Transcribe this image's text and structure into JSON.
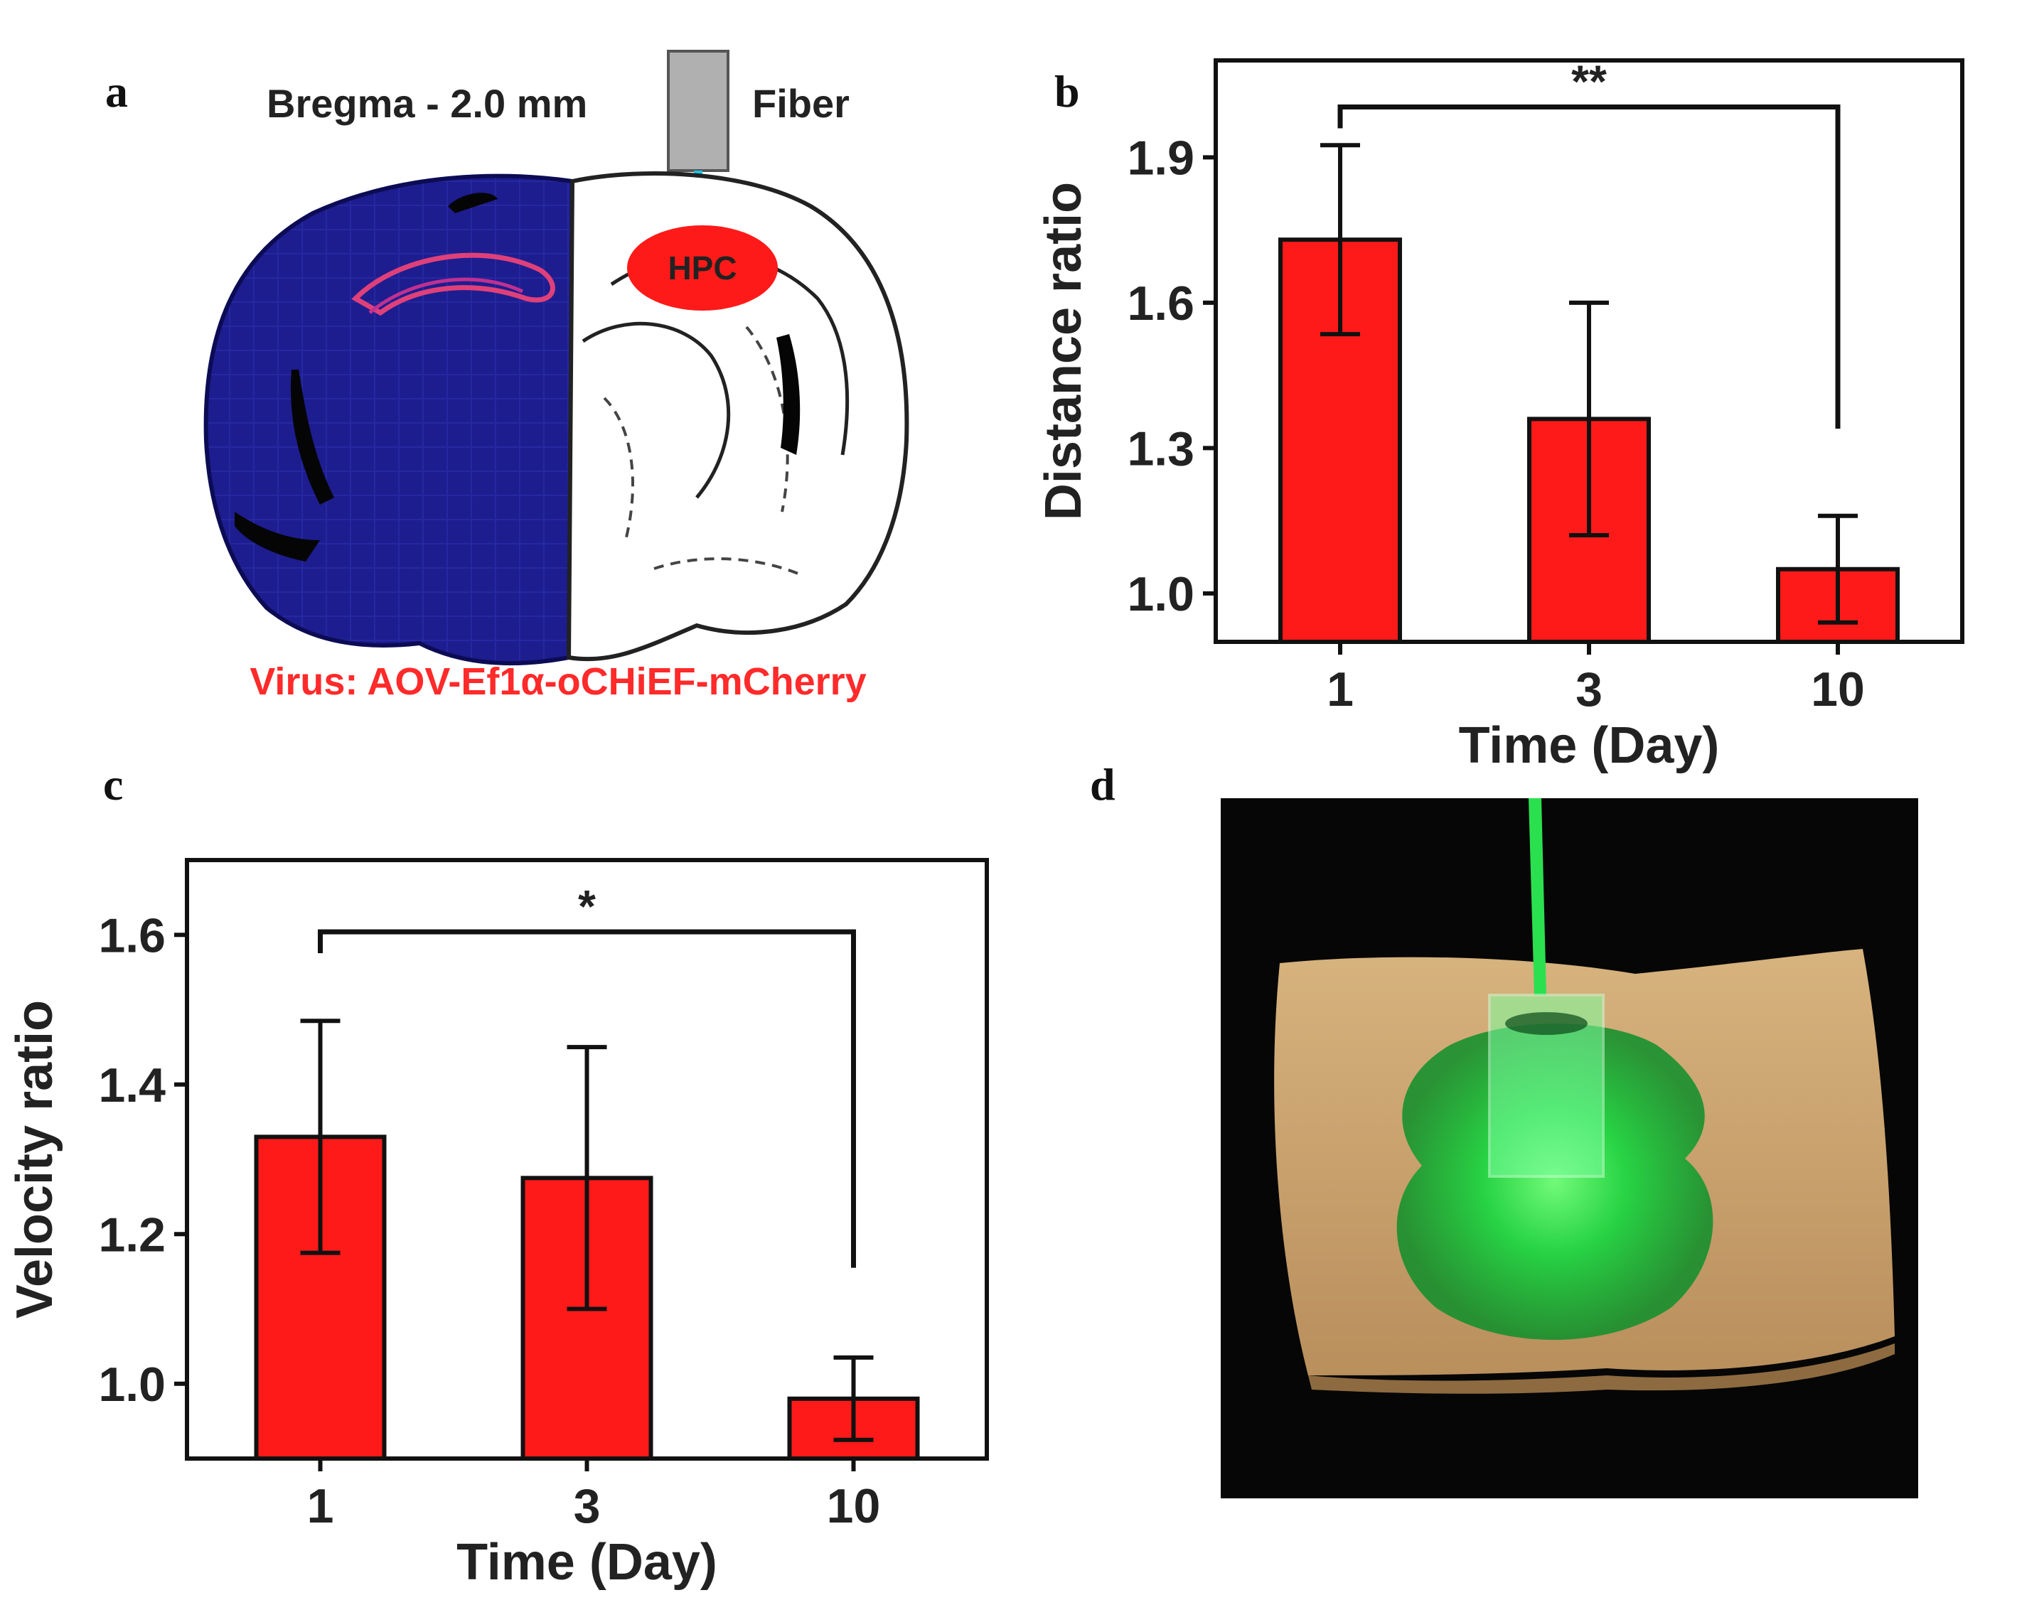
{
  "panels": {
    "a": {
      "letter": "a",
      "bregma_label": "Bregma - 2.0 mm",
      "fiber_label": "Fiber",
      "region_label": "HPC",
      "virus_label": "Virus: AOV-Ef1α-oCHiEF-mCherry",
      "colors": {
        "stain": "#1a1a8c",
        "virus": "#ff2a2a",
        "fiber_light": "#22c3e6",
        "fiber": "#b0b0b0"
      }
    },
    "b": {
      "letter": "b"
    },
    "c": {
      "letter": "c"
    },
    "d": {
      "letter": "d",
      "colors": {
        "background": "#060606",
        "tissue": "#c8a070",
        "glow": "#20e040"
      }
    }
  },
  "chart_data": [
    {
      "id": "b",
      "type": "bar",
      "categories": [
        "1",
        "3",
        "10"
      ],
      "values": [
        1.73,
        1.36,
        1.05
      ],
      "errors": [
        0.195,
        0.24,
        0.11
      ],
      "xlabel": "Time (Day)",
      "ylabel": "Distance ratio",
      "ylim": [
        0.9,
        2.1
      ],
      "yticks": [
        1.0,
        1.3,
        1.6,
        1.9
      ],
      "ytick_labels": [
        "1.0",
        "1.3",
        "1.6",
        "1.9"
      ],
      "bar_color": "#ff1a1a",
      "significance": {
        "from": 0,
        "to": 2,
        "label": "**"
      }
    },
    {
      "id": "c",
      "type": "bar",
      "categories": [
        "1",
        "3",
        "10"
      ],
      "values": [
        1.33,
        1.275,
        0.98
      ],
      "errors": [
        0.155,
        0.175,
        0.055
      ],
      "xlabel": "Time (Day)",
      "ylabel": "Velocity ratio",
      "ylim": [
        0.9,
        1.7
      ],
      "yticks": [
        1.0,
        1.2,
        1.4,
        1.6
      ],
      "ytick_labels": [
        "1.0",
        "1.2",
        "1.4",
        "1.6"
      ],
      "bar_color": "#ff1a1a",
      "significance": {
        "from": 0,
        "to": 2,
        "label": "*"
      }
    }
  ]
}
